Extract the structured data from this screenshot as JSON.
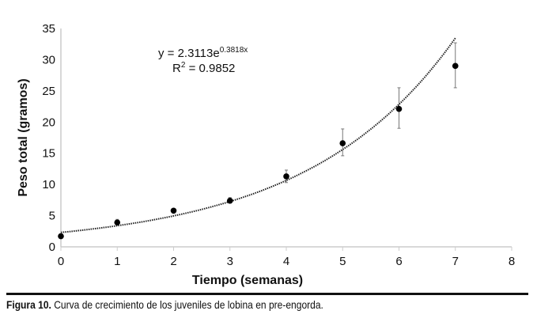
{
  "chart_data": {
    "type": "scatter",
    "xlabel": "Tiempo (semanas)",
    "ylabel": "Peso total (gramos)",
    "xlim": [
      0,
      8
    ],
    "ylim": [
      0,
      35
    ],
    "xticks": [
      "0",
      "1",
      "2",
      "3",
      "4",
      "5",
      "6",
      "7",
      "8"
    ],
    "yticks": [
      "0",
      "5",
      "10",
      "15",
      "20",
      "25",
      "30",
      "35"
    ],
    "grid": false,
    "x": [
      0,
      1,
      2,
      3,
      4,
      5,
      6,
      7
    ],
    "y": [
      1.7,
      3.9,
      5.8,
      7.4,
      11.3,
      16.6,
      22.1,
      29.0
    ],
    "error_low": [
      1.7,
      3.5,
      5.5,
      7.0,
      10.3,
      14.6,
      19.0,
      25.5
    ],
    "error_high": [
      1.7,
      4.4,
      6.1,
      7.9,
      12.3,
      18.9,
      25.5,
      32.7
    ],
    "trendline": {
      "type": "exponential",
      "a": 2.3113,
      "b": 0.3818,
      "x_range": [
        0,
        7
      ],
      "style": "dotted"
    },
    "annotations": {
      "equation_main": "y = 2.3113e",
      "equation_exp": "0.3818x",
      "r2_label": "R",
      "r2_sup": "2",
      "r2_value": " = 0.9852"
    },
    "marker_color": "#000000",
    "axis_color": "#cccccc"
  },
  "caption": {
    "label": "Figura 10.",
    "text": " Curva de crecimiento de los juveniles de lobina en pre-engorda."
  }
}
